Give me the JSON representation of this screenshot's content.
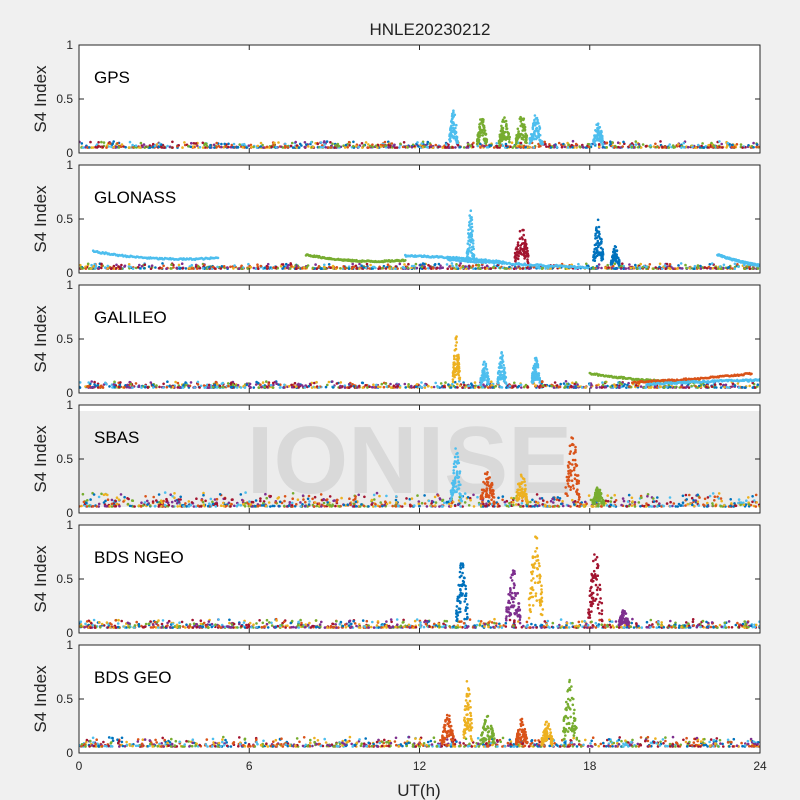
{
  "figure": {
    "title": "HNLE20230212",
    "xlabel": "UT(h)",
    "watermark": "IONISE"
  },
  "chart_data": [
    {
      "type": "scatter",
      "panel_label": "GPS",
      "ylabel": "S4 Index",
      "xlim": [
        0,
        24
      ],
      "ylim": [
        0,
        1
      ],
      "xticks": [
        "0",
        "6",
        "12",
        "18",
        "24"
      ],
      "yticks": [
        "0",
        "0.5",
        "1"
      ],
      "baseline": [
        0.04,
        0.1
      ],
      "bursts": [
        {
          "center": 13.2,
          "width": 0.3,
          "peak": 0.4,
          "color": "#4dbeee"
        },
        {
          "center": 14.2,
          "width": 0.35,
          "peak": 0.35,
          "color": "#77ac30"
        },
        {
          "center": 15.0,
          "width": 0.4,
          "peak": 0.35,
          "color": "#77ac30"
        },
        {
          "center": 15.6,
          "width": 0.4,
          "peak": 0.37,
          "color": "#77ac30"
        },
        {
          "center": 16.1,
          "width": 0.45,
          "peak": 0.36,
          "color": "#4dbeee"
        },
        {
          "center": 18.3,
          "width": 0.35,
          "peak": 0.3,
          "color": "#4dbeee"
        }
      ]
    },
    {
      "type": "scatter",
      "panel_label": "GLONASS",
      "ylabel": "S4 Index",
      "xlim": [
        0,
        24
      ],
      "ylim": [
        0,
        1
      ],
      "xticks": [
        "0",
        "6",
        "12",
        "18",
        "24"
      ],
      "yticks": [
        "0",
        "0.5",
        "1"
      ],
      "baseline": [
        0.03,
        0.08
      ],
      "arcs": [
        {
          "x0": 0.5,
          "x1": 4.9,
          "y0": 0.2,
          "ymid": 0.1,
          "y1": 0.14,
          "color": "#4dbeee"
        },
        {
          "x0": 8.0,
          "x1": 11.5,
          "y0": 0.17,
          "ymid": 0.08,
          "y1": 0.12,
          "color": "#77ac30"
        },
        {
          "x0": 11.5,
          "x1": 15.0,
          "y0": 0.16,
          "ymid": 0.15,
          "y1": 0.1,
          "color": "#4dbeee"
        },
        {
          "x0": 13.0,
          "x1": 18.0,
          "y0": 0.12,
          "ymid": 0.08,
          "y1": 0.05,
          "color": "#4dbeee"
        },
        {
          "x0": 22.5,
          "x1": 24.0,
          "y0": 0.17,
          "ymid": 0.1,
          "y1": 0.07,
          "color": "#4dbeee"
        }
      ],
      "bursts": [
        {
          "center": 13.8,
          "width": 0.25,
          "peak": 0.58,
          "color": "#4dbeee"
        },
        {
          "center": 15.6,
          "width": 0.5,
          "peak": 0.45,
          "color": "#a2142f"
        },
        {
          "center": 18.3,
          "width": 0.35,
          "peak": 0.5,
          "color": "#0072bd"
        },
        {
          "center": 18.9,
          "width": 0.3,
          "peak": 0.25,
          "color": "#0072bd"
        }
      ]
    },
    {
      "type": "scatter",
      "panel_label": "GALILEO",
      "ylabel": "S4 Index",
      "xlim": [
        0,
        24
      ],
      "ylim": [
        0,
        1
      ],
      "xticks": [
        "0",
        "6",
        "12",
        "18",
        "24"
      ],
      "yticks": [
        "0",
        "0.5",
        "1"
      ],
      "baseline": [
        0.04,
        0.1
      ],
      "arcs": [
        {
          "x0": 18.0,
          "x1": 22.0,
          "y0": 0.18,
          "ymid": 0.1,
          "y1": 0.1,
          "color": "#77ac30"
        },
        {
          "x0": 19.5,
          "x1": 23.7,
          "y0": 0.1,
          "ymid": 0.12,
          "y1": 0.18,
          "color": "#d95319"
        },
        {
          "x0": 20.0,
          "x1": 24.0,
          "y0": 0.08,
          "ymid": 0.11,
          "y1": 0.12,
          "color": "#4dbeee"
        }
      ],
      "bursts": [
        {
          "center": 13.3,
          "width": 0.25,
          "peak": 0.53,
          "color": "#edb120"
        },
        {
          "center": 14.3,
          "width": 0.3,
          "peak": 0.3,
          "color": "#4dbeee"
        },
        {
          "center": 14.9,
          "width": 0.3,
          "peak": 0.38,
          "color": "#4dbeee"
        },
        {
          "center": 16.1,
          "width": 0.3,
          "peak": 0.34,
          "color": "#4dbeee"
        }
      ]
    },
    {
      "type": "scatter",
      "panel_label": "SBAS",
      "ylabel": "S4 Index",
      "xlim": [
        0,
        24
      ],
      "ylim": [
        0,
        1
      ],
      "xticks": [
        "0",
        "6",
        "12",
        "18",
        "24"
      ],
      "yticks": [
        "0",
        "0.5",
        "1"
      ],
      "baseline": [
        0.05,
        0.18
      ],
      "bursts": [
        {
          "center": 13.3,
          "width": 0.4,
          "peak": 0.62,
          "color": "#4dbeee"
        },
        {
          "center": 14.4,
          "width": 0.5,
          "peak": 0.42,
          "color": "#d95319"
        },
        {
          "center": 15.6,
          "width": 0.4,
          "peak": 0.4,
          "color": "#edb120"
        },
        {
          "center": 17.4,
          "width": 0.5,
          "peak": 0.75,
          "color": "#d95319"
        },
        {
          "center": 18.3,
          "width": 0.4,
          "peak": 0.25,
          "color": "#77ac30"
        }
      ]
    },
    {
      "type": "scatter",
      "panel_label": "BDS NGEO",
      "ylabel": "S4 Index",
      "xlim": [
        0,
        24
      ],
      "ylim": [
        0,
        1
      ],
      "xticks": [
        "0",
        "6",
        "12",
        "18",
        "24"
      ],
      "yticks": [
        "0",
        "0.5",
        "1"
      ],
      "baseline": [
        0.04,
        0.12
      ],
      "bursts": [
        {
          "center": 13.5,
          "width": 0.4,
          "peak": 0.7,
          "color": "#0072bd"
        },
        {
          "center": 15.3,
          "width": 0.5,
          "peak": 0.6,
          "color": "#7e2f8e"
        },
        {
          "center": 16.1,
          "width": 0.5,
          "peak": 0.92,
          "color": "#edb120"
        },
        {
          "center": 18.2,
          "width": 0.5,
          "peak": 0.78,
          "color": "#a2142f"
        },
        {
          "center": 19.2,
          "width": 0.35,
          "peak": 0.22,
          "color": "#7e2f8e"
        }
      ]
    },
    {
      "type": "scatter",
      "panel_label": "BDS GEO",
      "ylabel": "S4 Index",
      "xlim": [
        0,
        24
      ],
      "ylim": [
        0,
        1
      ],
      "xticks": [
        "0",
        "6",
        "12",
        "18",
        "24"
      ],
      "yticks": [
        "0",
        "0.5",
        "1"
      ],
      "baseline": [
        0.05,
        0.14
      ],
      "bursts": [
        {
          "center": 13.0,
          "width": 0.4,
          "peak": 0.4,
          "color": "#d95319"
        },
        {
          "center": 13.7,
          "width": 0.3,
          "peak": 0.72,
          "color": "#edb120"
        },
        {
          "center": 14.4,
          "width": 0.5,
          "peak": 0.35,
          "color": "#77ac30"
        },
        {
          "center": 15.6,
          "width": 0.4,
          "peak": 0.32,
          "color": "#d95319"
        },
        {
          "center": 16.5,
          "width": 0.4,
          "peak": 0.3,
          "color": "#edb120"
        },
        {
          "center": 17.3,
          "width": 0.5,
          "peak": 0.68,
          "color": "#77ac30"
        }
      ]
    }
  ],
  "series_colors": [
    "#0072bd",
    "#d95319",
    "#edb120",
    "#7e2f8e",
    "#77ac30",
    "#4dbeee",
    "#a2142f"
  ]
}
